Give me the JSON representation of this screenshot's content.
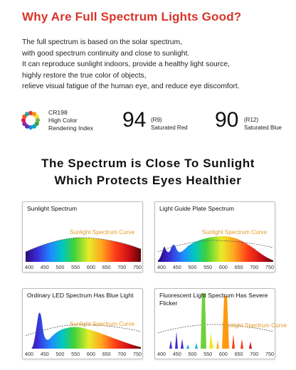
{
  "headline": "Why Are Full Spectrum Lights Good?",
  "intro_lines": [
    "The full spectrum is based on the solar spectrum,",
    "with good spectrum continuity and close to sunlight.",
    "It can reproduce sunlight indoors, provide a healthy light source,",
    "highly restore the true color of objects,",
    "relieve visual fatigue of the human eye, and reduce eye discomfort."
  ],
  "cri": {
    "code": "CR198",
    "line1": "High Color",
    "line2": "Rendering Index",
    "r9_value": "94",
    "r9_code": "(R9)",
    "r9_label": "Saturated Red",
    "r12_value": "90",
    "r12_code": "(R12)",
    "r12_label": "Saturated Blue",
    "wheel_colors": [
      "#e53935",
      "#fb8c00",
      "#fdd835",
      "#7cb342",
      "#43a047",
      "#00acc1",
      "#1e88e5",
      "#5e35b1",
      "#8e24aa",
      "#d81b60",
      "#f4511e",
      "#26a69a"
    ]
  },
  "section_title_lines": [
    "The Spectrum is Close To Sunlight",
    "Which Protects Eyes Healthier"
  ],
  "axis_ticks": [
    "400",
    "450",
    "500",
    "550",
    "600",
    "650",
    "700",
    "750"
  ],
  "panels": [
    {
      "id": "sunlight",
      "title": "Sunlight Spectrum",
      "curve_label": "Sunlight Spectrum Curve"
    },
    {
      "id": "light-guide",
      "title": "Light Guide Plate Spectrum",
      "curve_label": "Sunlight Spectrum Curve"
    },
    {
      "id": "led",
      "title": "Ordinary LED Spectrum Has Blue Light",
      "curve_label": "Sunlight Spectrum Curve"
    },
    {
      "id": "fluorescent",
      "title": "Fluorescent Light Spectrum Has Severe Flicker",
      "curve_label": "Sunlight Spectrum Curve"
    }
  ],
  "colors": {
    "headline": "#d8342a",
    "curve_label": "#e39a24"
  }
}
